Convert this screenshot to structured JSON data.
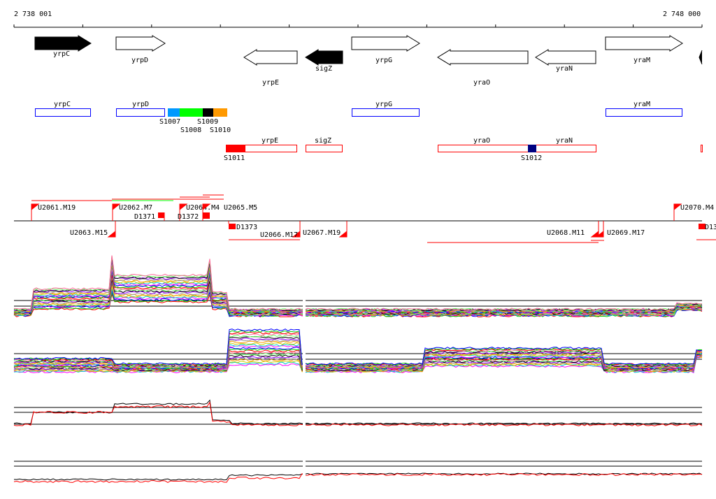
{
  "ruler": {
    "start_label": "2 738 001",
    "end_label": "2 748 000"
  },
  "genes": [
    {
      "name": "yrpC",
      "strand": "+",
      "fill": "#000000"
    },
    {
      "name": "yrpD",
      "strand": "+",
      "fill": "#ffffff"
    },
    {
      "name": "yrpE",
      "strand": "-",
      "fill": "#ffffff"
    },
    {
      "name": "sigZ",
      "strand": "-",
      "fill": "#000000"
    },
    {
      "name": "yrpG",
      "strand": "+",
      "fill": "#ffffff"
    },
    {
      "name": "yraO",
      "strand": "-",
      "fill": "#ffffff"
    },
    {
      "name": "yraN",
      "strand": "-",
      "fill": "#ffffff"
    },
    {
      "name": "yraM",
      "strand": "+",
      "fill": "#ffffff"
    }
  ],
  "forward_boxes": [
    "yrpC",
    "yrpD",
    "yrpG",
    "yraM"
  ],
  "segments_forward": [
    {
      "label": "S1007",
      "color": "#0099ff"
    },
    {
      "label": "S1008",
      "color": "#00ff00"
    },
    {
      "label": "S1009",
      "color": "#000000"
    },
    {
      "label": "S1010",
      "color": "#ff9900"
    }
  ],
  "reverse_boxes": [
    "yrpE",
    "sigZ",
    "yraO",
    "yraN"
  ],
  "segments_reverse": [
    {
      "label": "S1011",
      "color": "#ff0000"
    },
    {
      "label": "S1012",
      "color": "#000080"
    }
  ],
  "features_upper": [
    "U2061.M19",
    "U2062.M7",
    "D1371",
    "U2064.M4",
    "D1372",
    "U2065.M5",
    "U2070.M4"
  ],
  "features_lower": [
    "U2063.M15",
    "D1373",
    "U2066.M17",
    "U2067.M19",
    "U2068.M11",
    "U2069.M17",
    "D13"
  ],
  "colors": {
    "forward": "#0000ff",
    "reverse": "#ff0000"
  }
}
